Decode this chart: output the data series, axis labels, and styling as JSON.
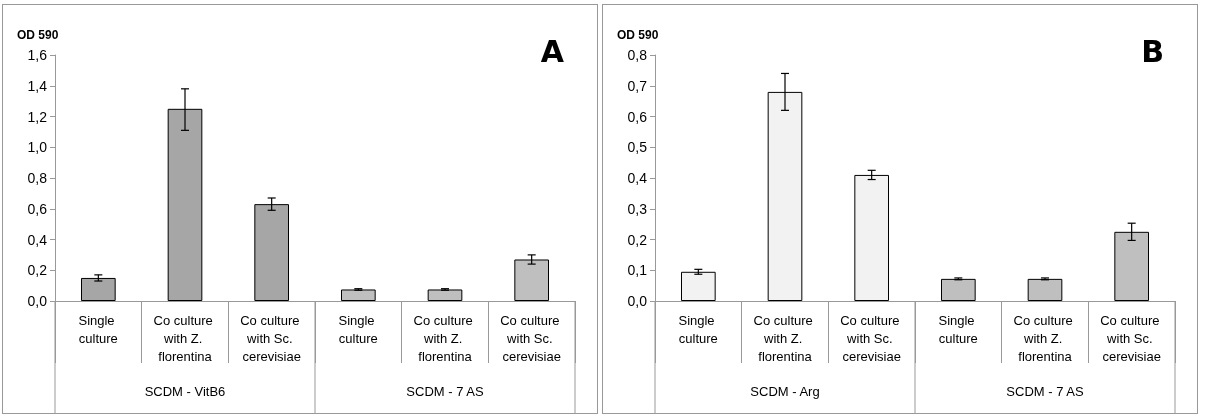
{
  "chart_data": [
    {
      "type": "bar",
      "title": "A",
      "ylabel": "OD 590",
      "categories": [
        "Single culture",
        "Co culture with Z. florentina",
        "Co culture with Sc. cerevisiae",
        "Single culture",
        "Co culture with Z. florentina",
        "Co culture with Sc. cerevisiae"
      ],
      "values": [
        0.15,
        1.25,
        0.63,
        0.075,
        0.075,
        0.27
      ],
      "errors": [
        0.02,
        [
          1.11,
          1.38
        ],
        0.04,
        0.005,
        0.005,
        0.03
      ],
      "colors": [
        "#a6a6a6",
        "#a6a6a6",
        "#a6a6a6",
        "#bfbfbf",
        "#bfbfbf",
        "#bfbfbf"
      ],
      "ylim": [
        0,
        1.6
      ],
      "yticks": [
        {
          "value": 0,
          "label": "0,0"
        },
        {
          "value": 0.2,
          "label": "0,2"
        },
        {
          "value": 0.4,
          "label": "0,4"
        },
        {
          "value": 0.6,
          "label": "0,6"
        },
        {
          "value": 0.8,
          "label": "0,8"
        },
        {
          "value": 1.0,
          "label": "1,0"
        },
        {
          "value": 1.2,
          "label": "1,2"
        },
        {
          "value": 1.4,
          "label": "1,4"
        },
        {
          "value": 1.6,
          "label": "1,6"
        }
      ],
      "annotations": [
        "SCDM - VitB6",
        "SCDM - 7 AS"
      ]
    },
    {
      "type": "bar",
      "title": "B",
      "ylabel": "OD 590",
      "categories": [
        "Single culture",
        "Co culture with Z. florentina",
        "Co culture with Sc. cerevisiae",
        "Single culture",
        "Co culture with Z. florentina",
        "Co culture with Sc. cerevisiae"
      ],
      "values": [
        0.095,
        0.68,
        0.41,
        0.072,
        0.072,
        0.225
      ],
      "errors": [
        0.008,
        [
          0.62,
          0.74
        ],
        0.015,
        0.003,
        0.003,
        [
          0.197,
          0.253
        ]
      ],
      "colors": [
        "#f2f2f2",
        "#f2f2f2",
        "#f2f2f2",
        "#bfbfbf",
        "#bfbfbf",
        "#bfbfbf"
      ],
      "ylim": [
        0,
        0.8
      ],
      "yticks": [
        {
          "value": 0,
          "label": "0,0"
        },
        {
          "value": 0.1,
          "label": "0,1"
        },
        {
          "value": 0.2,
          "label": "0,2"
        },
        {
          "value": 0.3,
          "label": "0,3"
        },
        {
          "value": 0.4,
          "label": "0,4"
        },
        {
          "value": 0.5,
          "label": "0,5"
        },
        {
          "value": 0.6,
          "label": "0,6"
        },
        {
          "value": 0.7,
          "label": "0,7"
        },
        {
          "value": 0.8,
          "label": "0,8"
        }
      ],
      "annotations": [
        "SCDM - Arg",
        "SCDM - 7 AS"
      ]
    }
  ]
}
